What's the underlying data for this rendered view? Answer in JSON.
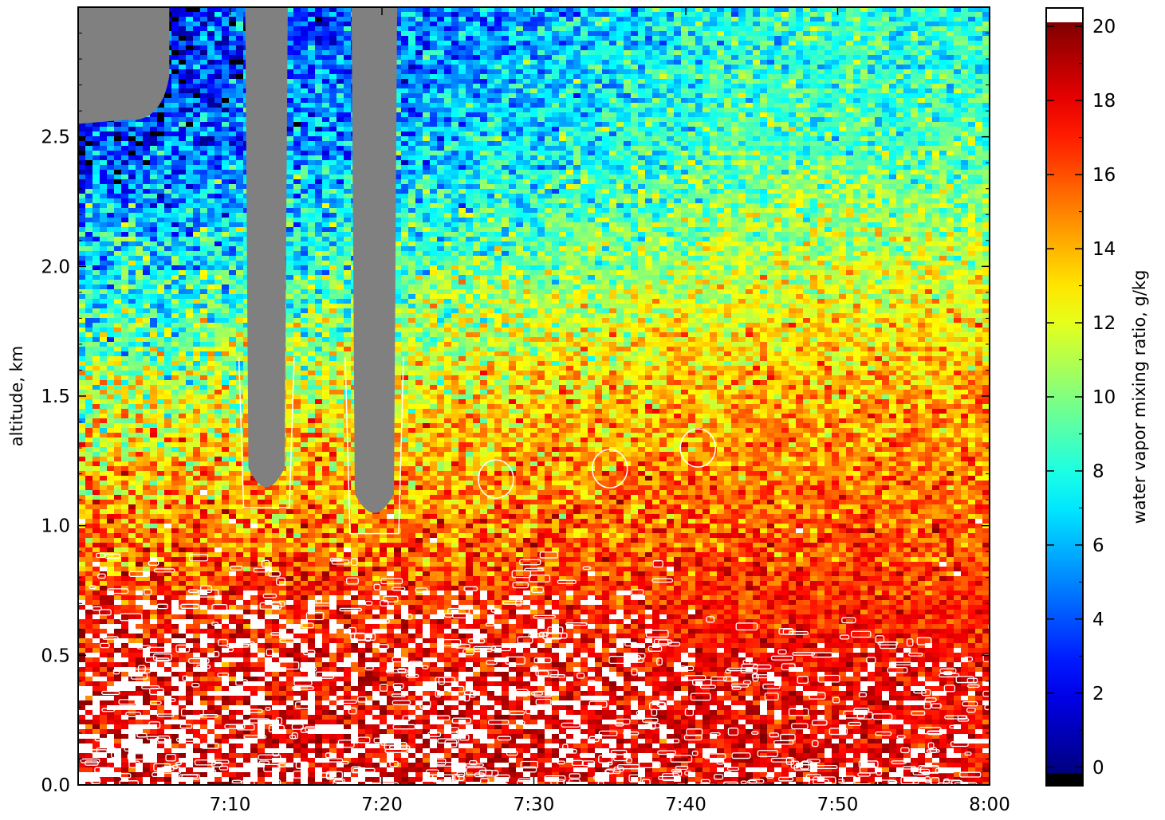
{
  "chart_data": {
    "type": "heatmap",
    "title": "",
    "xlabel": "",
    "ylabel": "altitude, km",
    "x_ticks": [
      "7:10",
      "7:20",
      "7:30",
      "7:40",
      "7:50",
      "8:00"
    ],
    "x_tick_minutes": [
      10,
      20,
      30,
      40,
      50,
      60
    ],
    "x_range_minutes": [
      0,
      60
    ],
    "y_ticks": [
      "0.0",
      "0.5",
      "1.0",
      "1.5",
      "2.0",
      "2.5"
    ],
    "y_tick_values": [
      0,
      0.5,
      1.0,
      1.5,
      2.0,
      2.5
    ],
    "ylim": [
      0,
      3.0
    ],
    "grid": false,
    "colorbar": {
      "label": "water vapor mixing ratio, g/kg",
      "ticks": [
        "0",
        "2",
        "4",
        "6",
        "8",
        "10",
        "12",
        "14",
        "16",
        "18",
        "20"
      ],
      "tick_values": [
        0,
        2,
        4,
        6,
        8,
        10,
        12,
        14,
        16,
        18,
        20
      ],
      "range": [
        -0.5,
        20.5
      ],
      "colormap": "jet",
      "over_color": "#ffffff",
      "under_color": "#000000",
      "missing_color": "#808080"
    },
    "cloud_contour_color": "#ffffff",
    "missing_regions": [
      {
        "name": "gap-top-left",
        "x_minutes": [
          0,
          6.0
        ],
        "top_km": 3.0,
        "bottom_km": 2.55
      },
      {
        "name": "gap-column-1",
        "x_minutes": [
          11.0,
          13.8
        ],
        "top_km": 3.0,
        "bottom_km": 1.1
      },
      {
        "name": "gap-column-2",
        "x_minutes": [
          18.0,
          21.0
        ],
        "top_km": 3.0,
        "bottom_km": 1.0
      }
    ],
    "moisture_profile": {
      "description_levels_km": [
        0,
        0.5,
        1.0,
        1.5,
        2.0,
        2.5,
        3.0
      ],
      "left_g_per_kg": [
        19.5,
        18.5,
        15,
        11,
        7,
        3,
        1
      ],
      "right_g_per_kg": [
        18.5,
        18,
        16,
        14.5,
        11.5,
        9,
        8
      ]
    }
  }
}
